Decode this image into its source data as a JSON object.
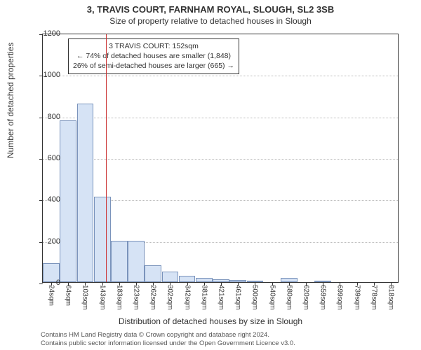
{
  "title_line1": "3, TRAVIS COURT, FARNHAM ROYAL, SLOUGH, SL2 3SB",
  "title_line2": "Size of property relative to detached houses in Slough",
  "ylabel": "Number of detached properties",
  "xlabel": "Distribution of detached houses by size in Slough",
  "chart": {
    "type": "histogram",
    "ylim": [
      0,
      1200
    ],
    "ytick_step": 200,
    "background_color": "#ffffff",
    "grid_color": "#bbbbbb",
    "bar_fill": "#d6e3f5",
    "bar_border": "#7a93bb",
    "vline_color": "#cc3333",
    "vline_x": 152,
    "xtick_labels": [
      "24sqm",
      "64sqm",
      "103sqm",
      "143sqm",
      "183sqm",
      "223sqm",
      "262sqm",
      "302sqm",
      "342sqm",
      "381sqm",
      "421sqm",
      "461sqm",
      "500sqm",
      "540sqm",
      "580sqm",
      "620sqm",
      "659sqm",
      "699sqm",
      "739sqm",
      "778sqm",
      "818sqm"
    ],
    "values": [
      90,
      780,
      860,
      410,
      200,
      200,
      80,
      50,
      30,
      20,
      15,
      10,
      5,
      0,
      20,
      0,
      5,
      0,
      0,
      0,
      0
    ]
  },
  "annot": {
    "line1": "3 TRAVIS COURT: 152sqm",
    "line2": "← 74% of detached houses are smaller (1,848)",
    "line3": "26% of semi-detached houses are larger (665) →"
  },
  "footer": {
    "line1": "Contains HM Land Registry data © Crown copyright and database right 2024.",
    "line2": "Contains public sector information licensed under the Open Government Licence v3.0."
  }
}
